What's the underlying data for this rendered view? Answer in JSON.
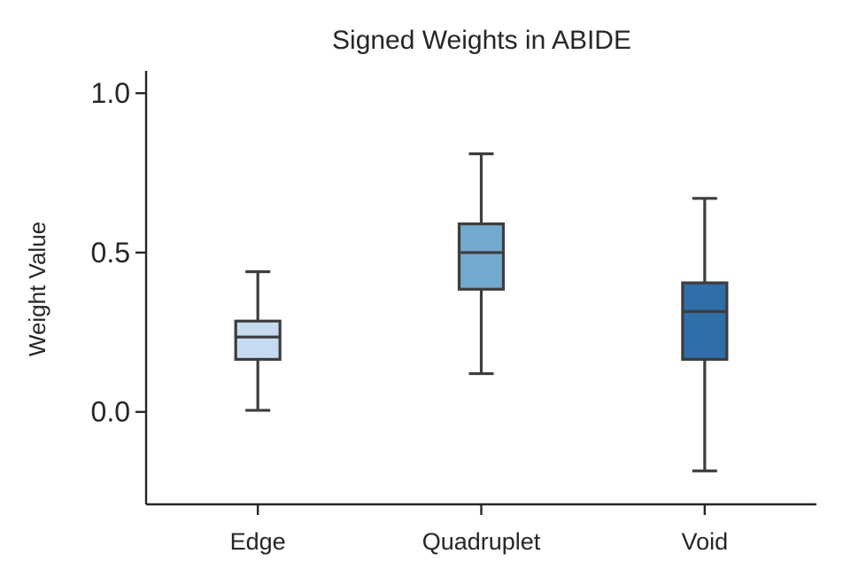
{
  "chart_data": {
    "type": "box",
    "title": "Signed Weights in ABIDE",
    "xlabel": "",
    "ylabel": "Weight Value",
    "ylim": [
      -0.29,
      1.07
    ],
    "yticks": [
      0.0,
      0.5,
      1.0
    ],
    "ytick_labels": [
      "0.0",
      "0.5",
      "1.0"
    ],
    "grid": false,
    "categories": [
      "Edge",
      "Quadruplet",
      "Void"
    ],
    "boxes": [
      {
        "name": "Edge",
        "whisker_low": 0.005,
        "q1": 0.165,
        "median": 0.235,
        "q3": 0.285,
        "whisker_high": 0.44,
        "color": "#c6dbef"
      },
      {
        "name": "Quadruplet",
        "whisker_low": 0.12,
        "q1": 0.385,
        "median": 0.5,
        "q3": 0.59,
        "whisker_high": 0.81,
        "color": "#74a9cf"
      },
      {
        "name": "Void",
        "whisker_low": -0.185,
        "q1": 0.165,
        "median": 0.315,
        "q3": 0.405,
        "whisker_high": 0.67,
        "color": "#2f6ea8"
      }
    ]
  }
}
